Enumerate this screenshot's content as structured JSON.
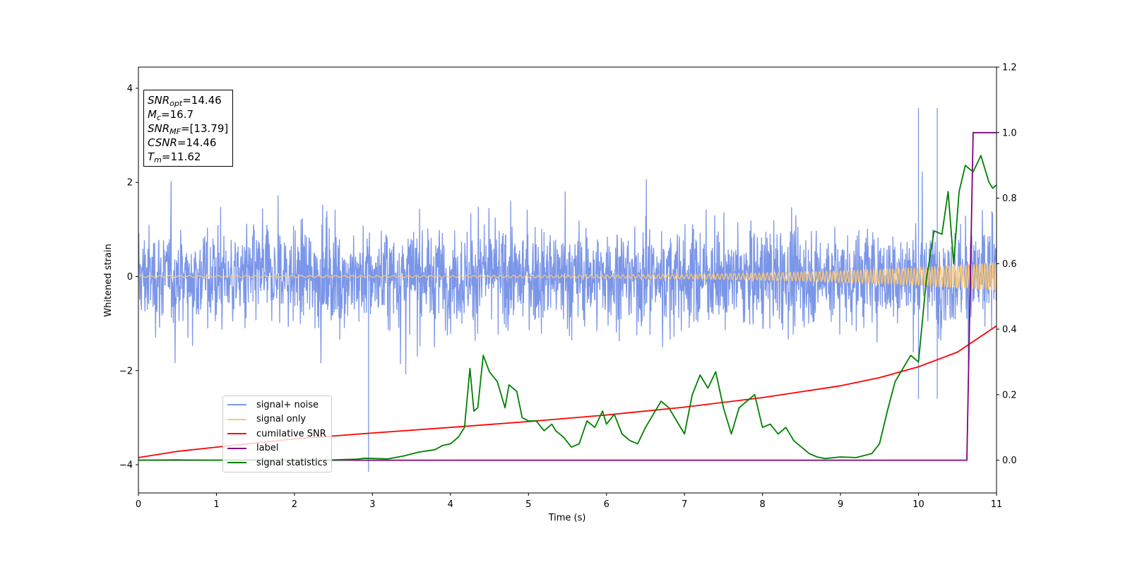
{
  "chart_data": {
    "type": "line",
    "xlabel": "Time (s)",
    "ylabel": "Whitened strain",
    "xlim": [
      0,
      11
    ],
    "ylim_left": [
      -4.6,
      4.45
    ],
    "ylim_right": [
      -0.1,
      1.2
    ],
    "x_ticks": [
      "0",
      "1",
      "2",
      "3",
      "4",
      "5",
      "6",
      "7",
      "8",
      "9",
      "10",
      "11"
    ],
    "y_ticks_left": [
      "-4",
      "-2",
      "0",
      "2",
      "4"
    ],
    "y_ticks_right": [
      "0.0",
      "0.2",
      "0.4",
      "0.6",
      "0.8",
      "1.0",
      "1.2"
    ],
    "annotation": {
      "snr_opt": {
        "base": "SNR",
        "sub": "opt",
        "value": "=14.46"
      },
      "mc": {
        "base": "M",
        "sub": "c",
        "value": "=16.7"
      },
      "snr_mf": {
        "base": "SNR",
        "sub": "MF",
        "value": "=[13.79]"
      },
      "csnr": {
        "base": "CSNR",
        "value": "=14.46"
      },
      "tm": {
        "base": "T",
        "sub": "m",
        "value": "=11.62"
      }
    },
    "series": [
      {
        "name": "signal+ noise",
        "color": "#7b96e8",
        "axis": "left",
        "kind": "noise",
        "typical_amplitude": [
          -2.0,
          2.2
        ],
        "peaks": [
          3.58,
          -4.15
        ],
        "spike_times": [
          2.95,
          10.0,
          10.24
        ]
      },
      {
        "name": "signal only",
        "color": "#ffc870",
        "axis": "left",
        "kind": "chirp",
        "amplitude_start": 0.02,
        "amplitude_end": 0.3,
        "freq_start": 8,
        "freq_end": 30
      },
      {
        "name": "cumilative SNR",
        "color": "#ff0000",
        "axis": "right",
        "x": [
          0,
          0.5,
          1,
          2,
          3,
          4,
          5,
          6,
          7,
          8,
          9,
          9.5,
          10,
          10.5,
          11
        ],
        "y": [
          0.008,
          0.027,
          0.04,
          0.065,
          0.083,
          0.1,
          0.118,
          0.138,
          0.162,
          0.191,
          0.227,
          0.252,
          0.285,
          0.33,
          0.41
        ]
      },
      {
        "name": "label",
        "color": "#800080",
        "axis": "right",
        "x": [
          0,
          10.62,
          10.7,
          11
        ],
        "y": [
          0,
          0,
          1,
          1
        ]
      },
      {
        "name": "signal statistics",
        "color": "#008000",
        "axis": "right",
        "x": [
          0,
          0.5,
          1,
          1.5,
          2,
          2.5,
          2.8,
          2.9,
          3.2,
          3.4,
          3.6,
          3.8,
          3.9,
          4.0,
          4.1,
          4.18,
          4.25,
          4.3,
          4.35,
          4.42,
          4.5,
          4.6,
          4.7,
          4.75,
          4.85,
          4.92,
          5.0,
          5.1,
          5.2,
          5.3,
          5.35,
          5.45,
          5.55,
          5.65,
          5.75,
          5.85,
          5.95,
          6.0,
          6.1,
          6.2,
          6.3,
          6.4,
          6.5,
          6.6,
          6.7,
          6.8,
          6.9,
          7.0,
          7.1,
          7.2,
          7.3,
          7.4,
          7.5,
          7.6,
          7.7,
          7.8,
          7.9,
          8.0,
          8.1,
          8.2,
          8.3,
          8.4,
          8.5,
          8.6,
          8.7,
          8.8,
          9.0,
          9.2,
          9.4,
          9.5,
          9.6,
          9.7,
          9.8,
          9.9,
          10.0,
          10.1,
          10.2,
          10.3,
          10.38,
          10.45,
          10.52,
          10.6,
          10.7,
          10.8,
          10.9,
          10.95,
          11.0
        ],
        "y": [
          0,
          0.001,
          0.0,
          0.001,
          0.0,
          0.001,
          0.003,
          0.006,
          0.004,
          0.013,
          0.025,
          0.032,
          0.045,
          0.05,
          0.07,
          0.1,
          0.28,
          0.15,
          0.16,
          0.32,
          0.27,
          0.24,
          0.16,
          0.23,
          0.21,
          0.13,
          0.12,
          0.12,
          0.09,
          0.11,
          0.09,
          0.07,
          0.04,
          0.05,
          0.12,
          0.1,
          0.15,
          0.11,
          0.14,
          0.08,
          0.06,
          0.05,
          0.1,
          0.14,
          0.18,
          0.16,
          0.12,
          0.08,
          0.2,
          0.26,
          0.22,
          0.27,
          0.16,
          0.08,
          0.16,
          0.18,
          0.2,
          0.1,
          0.11,
          0.08,
          0.1,
          0.06,
          0.04,
          0.02,
          0.01,
          0.005,
          0.01,
          0.008,
          0.02,
          0.05,
          0.15,
          0.24,
          0.28,
          0.32,
          0.3,
          0.55,
          0.7,
          0.69,
          0.82,
          0.6,
          0.82,
          0.9,
          0.88,
          0.93,
          0.85,
          0.83,
          0.84
        ]
      }
    ],
    "legend_position": "lower left"
  }
}
